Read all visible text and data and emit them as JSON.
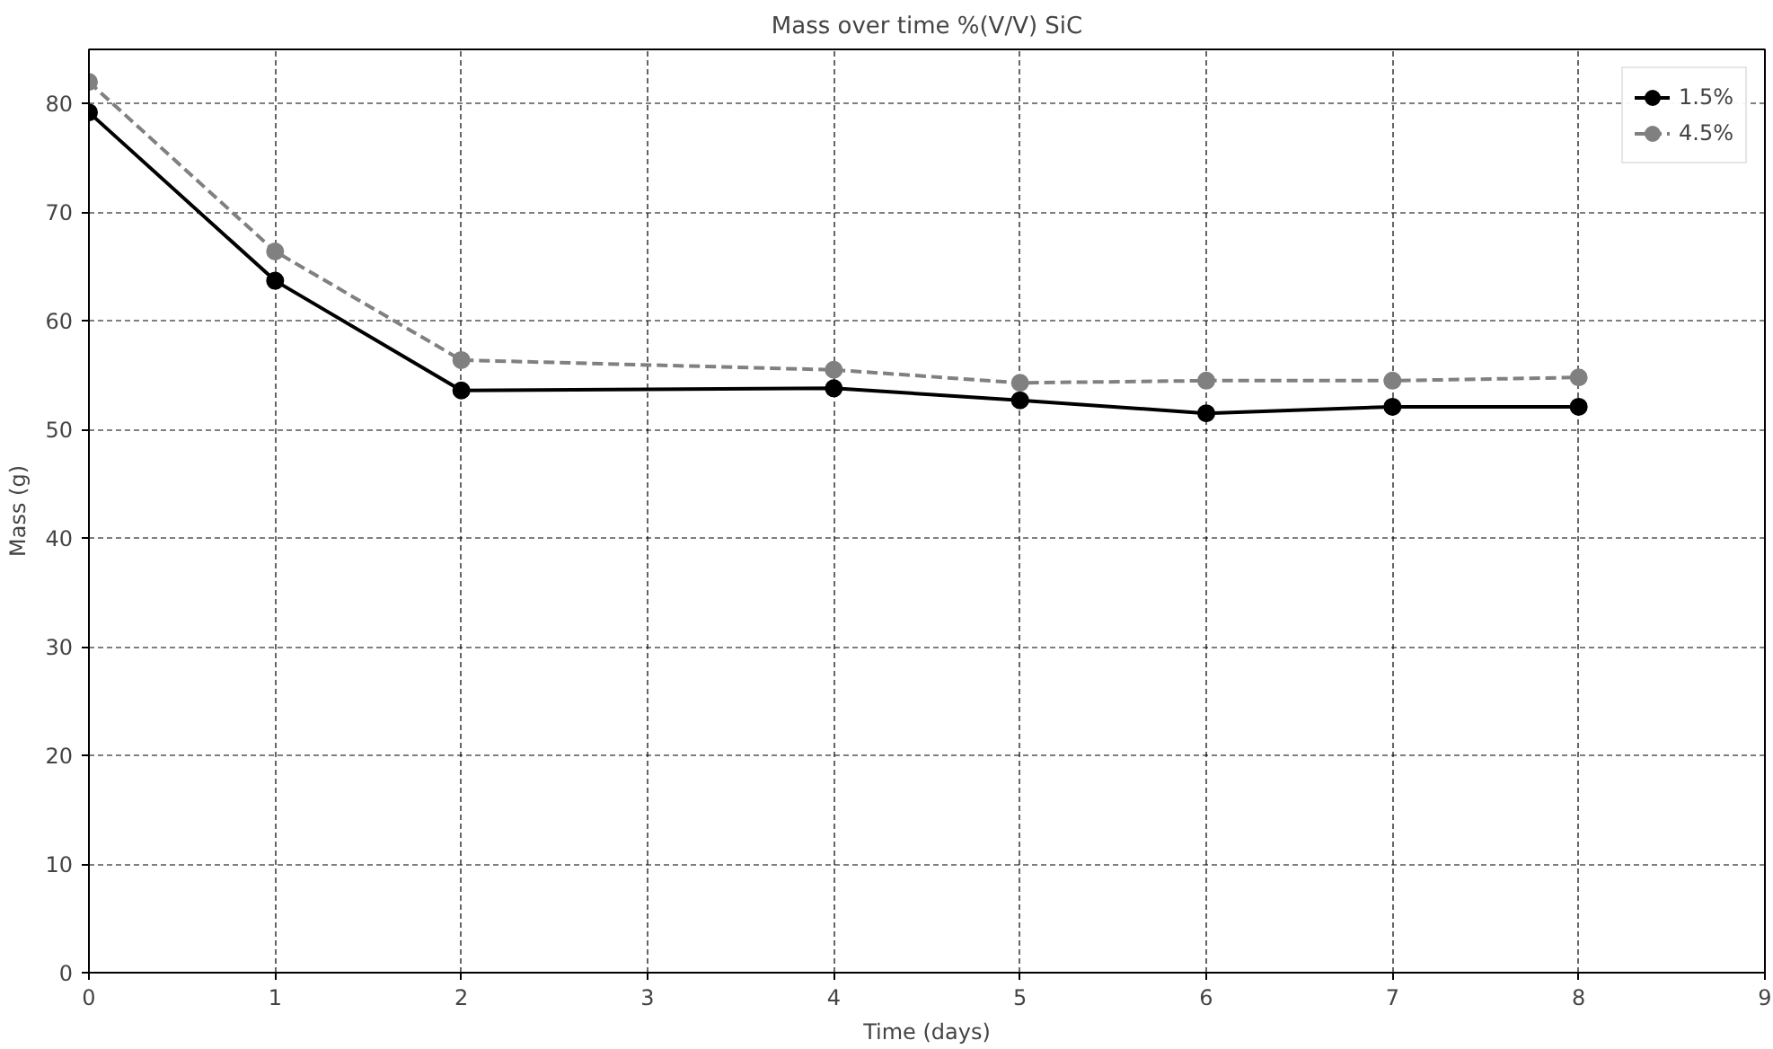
{
  "chart_data": {
    "type": "line",
    "title": "Mass over time %(V/V) SiC",
    "xlabel": "Time (days)",
    "ylabel": "Mass (g)",
    "x": [
      0,
      1,
      2,
      4,
      5,
      6,
      7,
      8
    ],
    "series": [
      {
        "name": "1.5%",
        "color": "#000000",
        "line_style": "solid",
        "values": [
          79.2,
          63.7,
          53.6,
          53.8,
          52.7,
          51.5,
          52.1,
          52.1
        ]
      },
      {
        "name": "4.5%",
        "color": "#808080",
        "line_style": "dashed",
        "values": [
          82.0,
          66.4,
          56.4,
          55.5,
          54.3,
          54.5,
          54.5,
          54.8
        ]
      }
    ],
    "xlim": [
      0,
      9
    ],
    "xticks": [
      0,
      1,
      2,
      3,
      4,
      5,
      6,
      7,
      8,
      9
    ],
    "ylim": [
      0,
      85
    ],
    "yticks": [
      0,
      10,
      20,
      30,
      40,
      50,
      60,
      70,
      80
    ],
    "grid": true,
    "legend": "top right",
    "marker": "circle"
  }
}
